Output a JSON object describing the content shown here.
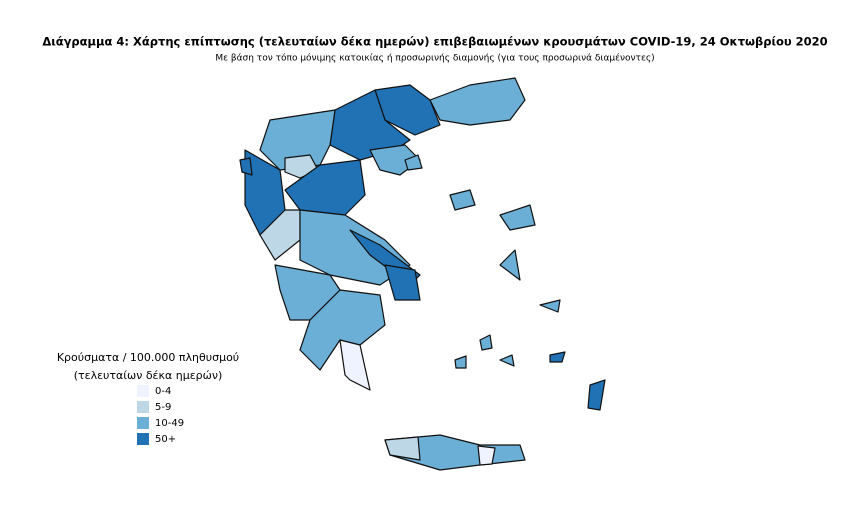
{
  "title": "Διάγραμμα 4: Χάρτης επίπτωσης (τελευταίων δέκα ημερών) επιβεβαιωμένων κρουσμάτων COVID-19, 24 Οκτωβρίου 2020",
  "subtitle": "Με βάση τον τόπο μόνιμης κατοικίας ή προσωρινής διαμονής (για τους προσωρινά διαμένοντες)",
  "legend": {
    "title_lines": [
      "Κρούσματα / 100.000 πληθυσμού",
      "(τελευταίων δέκα ημερών)"
    ],
    "items": [
      {
        "label": "0-4",
        "color": "#eff3ff"
      },
      {
        "label": "5-9",
        "color": "#bdd7e7"
      },
      {
        "label": "10-49",
        "color": "#6baed6"
      },
      {
        "label": "50+",
        "color": "#2171b5"
      }
    ]
  }
}
